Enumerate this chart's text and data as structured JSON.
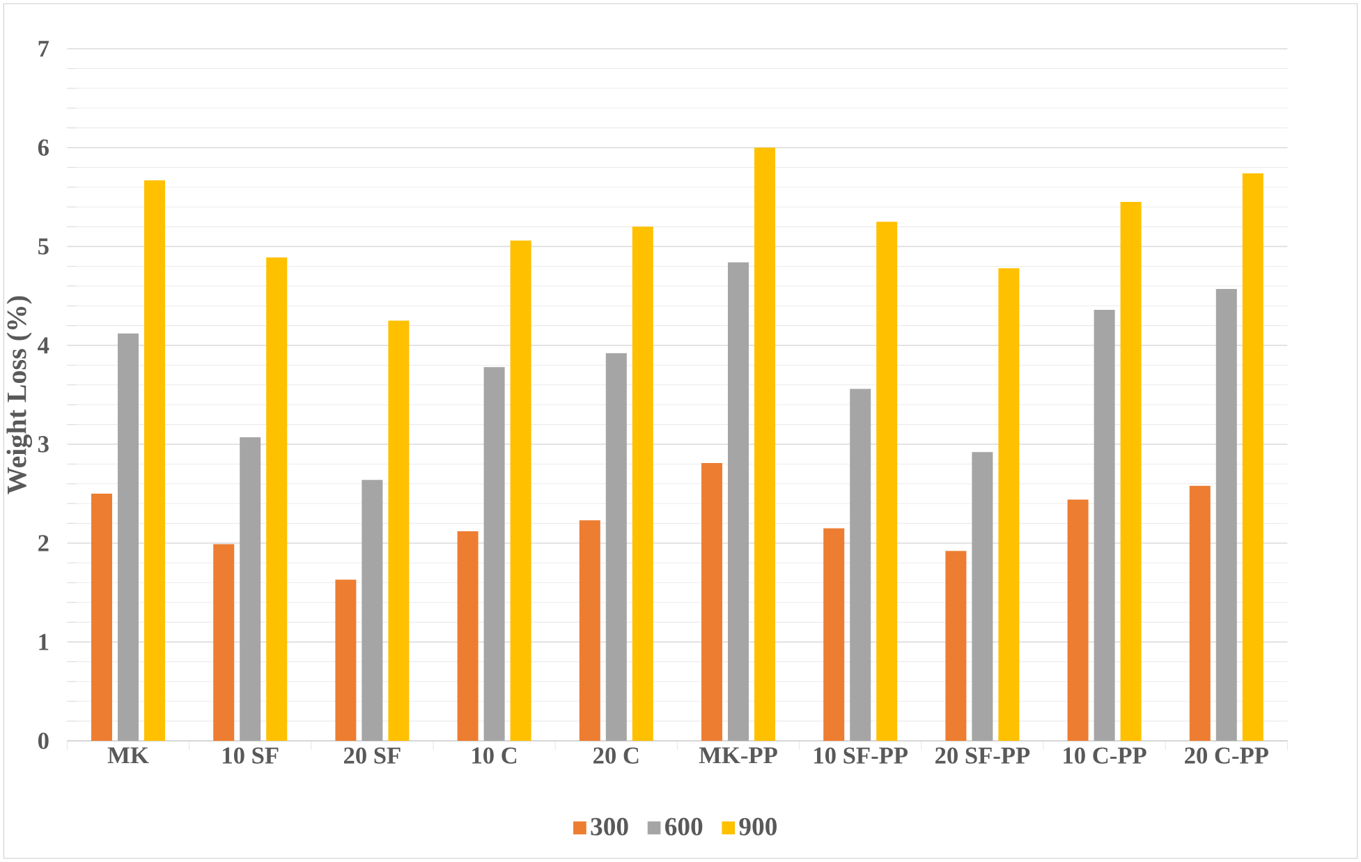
{
  "chart_data": {
    "type": "bar",
    "ylabel": "Weight Loss (%)",
    "categories": [
      "MK",
      "10 SF",
      "20 SF",
      "10 C",
      "20 C",
      "MK-PP",
      "10 SF-PP",
      "20 SF-PP",
      "10 C-PP",
      "20 C-PP"
    ],
    "series": [
      {
        "name": "300",
        "color": "#ed7d31",
        "values": [
          2.5,
          1.99,
          1.63,
          2.12,
          2.23,
          2.81,
          2.15,
          1.92,
          2.44,
          2.58
        ]
      },
      {
        "name": "600",
        "color": "#a5a5a5",
        "values": [
          4.12,
          3.07,
          2.64,
          3.78,
          3.92,
          4.84,
          3.56,
          2.92,
          4.36,
          4.57
        ]
      },
      {
        "name": "900",
        "color": "#ffc000",
        "values": [
          5.67,
          4.89,
          4.25,
          5.06,
          5.2,
          6.0,
          5.25,
          4.78,
          5.45,
          5.74
        ]
      }
    ],
    "ylim": [
      0,
      7
    ],
    "yticks": [
      0,
      1,
      2,
      3,
      4,
      5,
      6,
      7
    ],
    "grid": "y",
    "legend": "bottom"
  }
}
